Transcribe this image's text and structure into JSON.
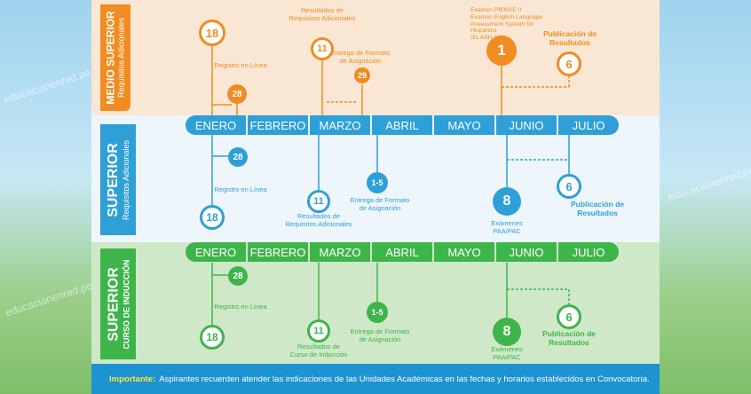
{
  "watermark": "educacionenred.pe",
  "sections": {
    "medio_superior": {
      "title": "MEDIO SUPERIOR",
      "subtitle": "Requisitos Adicionales",
      "color": "#f08c21"
    },
    "superior_req": {
      "title": "SUPERIOR",
      "subtitle": "Requisitos Adicionales",
      "color": "#2f9fd8"
    },
    "superior_curso": {
      "title": "SUPERIOR",
      "subtitle": "CURSO DE INDUCCIÓN",
      "color": "#3eb54a"
    }
  },
  "months_blue": [
    "ENERO",
    "FEBRERO",
    "MARZO",
    "ABRIL",
    "MAYO",
    "JUNIO",
    "JULIO"
  ],
  "months_green": [
    "ENERO",
    "FEBRERO",
    "MARZO",
    "ABRIL",
    "MAYO",
    "JUNIO",
    "JULIO"
  ],
  "orange": {
    "d18": "18",
    "d28": "28",
    "d11": "11",
    "d29": "29",
    "d1": "1",
    "d6": "6",
    "registro": "Registro en Línea",
    "resultados": "Resultados de Requisitos Adicionales",
    "entrega": "Entrega de Formato de Asignación",
    "examen_1": "Examen PIENSE II",
    "examen_2": "Examen English Language",
    "examen_3": "Assessment System for Hispanics",
    "examen_4": "(ELASH 1)",
    "publicacion": "Publicación de Resultados"
  },
  "blue": {
    "d28": "28",
    "d18": "18",
    "d11": "11",
    "d15": "1-5",
    "d8": "8",
    "d6": "6",
    "registro": "Registro en Línea",
    "resultados": "Resultados de Requisitos Adicionales",
    "entrega": "Entrega de Formato de Asignación",
    "examenes": "Exámenes PAA/PAC",
    "publicacion": "Publicación de Resultados"
  },
  "green": {
    "d28": "28",
    "d18": "18",
    "d11": "11",
    "d15": "1-5",
    "d8": "8",
    "d6": "6",
    "registro": "Registro en Línea",
    "resultados": "Resultados de Curso de Inducción",
    "entrega": "Entrega de Formato de Asignación",
    "examenes": "Exámenes PAA/PAC",
    "publicacion": "Publicación de Resultados"
  },
  "footer": {
    "important": "Importante:",
    "text": "Aspirantes recuerden atender las indicaciones de las Unidades Académicas en las fechas y horarios establecidos en Convocatoria."
  }
}
